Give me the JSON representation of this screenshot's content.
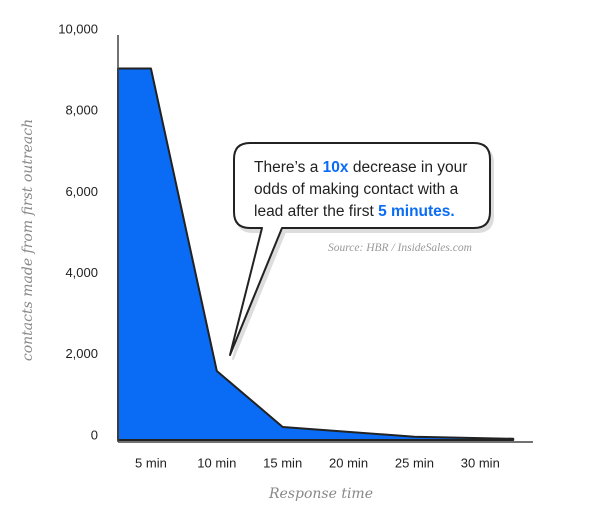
{
  "chart_data": {
    "type": "area",
    "x_label": "Response time",
    "y_label": "contacts made from first outreach",
    "x": [
      2.5,
      5,
      10,
      15,
      25,
      32.5
    ],
    "values": [
      9150,
      9150,
      1700,
      320,
      80,
      30
    ],
    "color": "#0a6cf5",
    "xlim": [
      2.5,
      34
    ],
    "xticks": [
      {
        "value": 5,
        "label": "5 min"
      },
      {
        "value": 10,
        "label": "10 min"
      },
      {
        "value": 15,
        "label": "15 min"
      },
      {
        "value": 20,
        "label": "20 min"
      },
      {
        "value": 25,
        "label": "25 min"
      },
      {
        "value": 30,
        "label": "30 min"
      }
    ],
    "ylim": [
      0,
      10000
    ],
    "yticks": [
      0,
      {
        "value": 2000,
        "label": "2,000"
      },
      {
        "value": 4000,
        "label": "4,000"
      },
      {
        "value": 6000,
        "label": "6,000"
      },
      {
        "value": 8000,
        "label": "8,000"
      },
      {
        "value": 10000,
        "label": "10,000"
      }
    ],
    "grid": false,
    "annotation": {
      "parts": [
        "There’s a ",
        "10x",
        " decrease in your odds of making contact with a lead after the first ",
        "5 minutes."
      ]
    },
    "source": "Source: HBR / InsideSales.com"
  }
}
